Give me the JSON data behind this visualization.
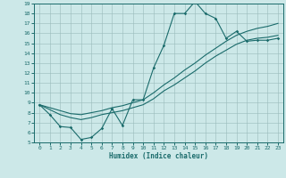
{
  "bg_color": "#cce8e8",
  "grid_color": "#99bbbb",
  "line_color": "#1a6b6b",
  "xlabel": "Humidex (Indice chaleur)",
  "xlim": [
    -0.5,
    23.5
  ],
  "ylim": [
    5,
    19
  ],
  "xticks": [
    0,
    1,
    2,
    3,
    4,
    5,
    6,
    7,
    8,
    9,
    10,
    11,
    12,
    13,
    14,
    15,
    16,
    17,
    18,
    19,
    20,
    21,
    22,
    23
  ],
  "yticks": [
    5,
    6,
    7,
    8,
    9,
    10,
    11,
    12,
    13,
    14,
    15,
    16,
    17,
    18,
    19
  ],
  "line1_x": [
    0,
    1,
    2,
    3,
    4,
    5,
    6,
    7,
    8,
    9,
    10,
    11,
    12,
    13,
    14,
    15,
    16,
    17,
    18,
    19,
    20,
    21,
    22,
    23
  ],
  "line1_y": [
    8.8,
    7.8,
    6.6,
    6.5,
    5.3,
    5.5,
    6.4,
    8.4,
    6.7,
    9.3,
    9.3,
    12.5,
    14.8,
    18.0,
    18.0,
    19.2,
    18.0,
    17.5,
    15.5,
    16.2,
    15.2,
    15.3,
    15.3,
    15.5
  ],
  "line2_x": [
    0,
    1,
    2,
    3,
    4,
    5,
    6,
    7,
    8,
    9,
    10,
    11,
    12,
    13,
    14,
    15,
    16,
    17,
    18,
    19,
    20,
    21,
    22,
    23
  ],
  "line2_y": [
    8.8,
    8.5,
    8.2,
    7.9,
    7.8,
    8.0,
    8.2,
    8.5,
    8.7,
    9.0,
    9.3,
    10.0,
    10.8,
    11.5,
    12.3,
    13.0,
    13.8,
    14.5,
    15.2,
    15.8,
    16.2,
    16.5,
    16.7,
    17.0
  ],
  "line3_x": [
    0,
    1,
    2,
    3,
    4,
    5,
    6,
    7,
    8,
    9,
    10,
    11,
    12,
    13,
    14,
    15,
    16,
    17,
    18,
    19,
    20,
    21,
    22,
    23
  ],
  "line3_y": [
    8.8,
    8.3,
    7.8,
    7.5,
    7.3,
    7.5,
    7.8,
    8.0,
    8.2,
    8.5,
    8.8,
    9.4,
    10.2,
    10.8,
    11.5,
    12.2,
    13.0,
    13.7,
    14.3,
    14.9,
    15.3,
    15.5,
    15.6,
    15.8
  ]
}
